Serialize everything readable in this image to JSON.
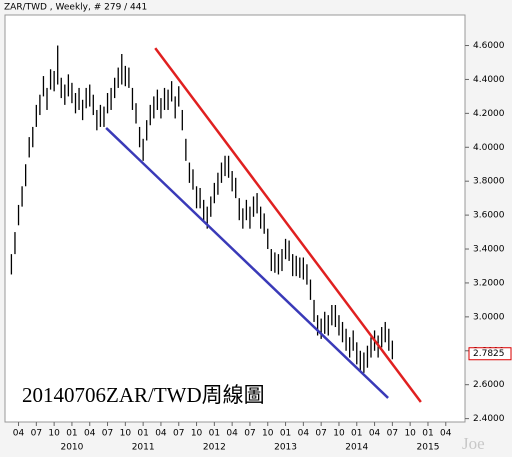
{
  "chart_data": {
    "type": "ohlc",
    "title": "ZAR/TWD , Weekly, # 279 / 441",
    "annotation": "20140706ZAR/TWD周線圖",
    "watermark": "Joe",
    "color": "#000000",
    "x": [
      2009.15,
      2009.2,
      2009.25,
      2009.3,
      2009.35,
      2009.4,
      2009.45,
      2009.5,
      2009.55,
      2009.6,
      2009.65,
      2009.7,
      2009.75,
      2009.8,
      2009.85,
      2009.9,
      2009.95,
      2010.0,
      2010.05,
      2010.1,
      2010.15,
      2010.2,
      2010.25,
      2010.3,
      2010.35,
      2010.4,
      2010.45,
      2010.5,
      2010.55,
      2010.6,
      2010.65,
      2010.7,
      2010.75,
      2010.8,
      2010.85,
      2010.9,
      2010.95,
      2011.0,
      2011.05,
      2011.1,
      2011.15,
      2011.2,
      2011.25,
      2011.3,
      2011.35,
      2011.4,
      2011.45,
      2011.5,
      2011.55,
      2011.6,
      2011.65,
      2011.7,
      2011.75,
      2011.8,
      2011.85,
      2011.9,
      2011.95,
      2012.0,
      2012.05,
      2012.1,
      2012.15,
      2012.2,
      2012.25,
      2012.3,
      2012.35,
      2012.4,
      2012.45,
      2012.5,
      2012.55,
      2012.6,
      2012.65,
      2012.7,
      2012.75,
      2012.8,
      2012.85,
      2012.9,
      2012.95,
      2013.0,
      2013.05,
      2013.1,
      2013.15,
      2013.2,
      2013.25,
      2013.3,
      2013.35,
      2013.4,
      2013.45,
      2013.5,
      2013.55,
      2013.6,
      2013.65,
      2013.7,
      2013.75,
      2013.8,
      2013.85,
      2013.9,
      2013.95,
      2014.0,
      2014.05,
      2014.1,
      2014.15,
      2014.2,
      2014.25,
      2014.3,
      2014.35,
      2014.4,
      2014.45,
      2014.5
    ],
    "high": [
      3.37,
      3.5,
      3.66,
      3.77,
      3.9,
      4.06,
      4.12,
      4.25,
      4.31,
      4.42,
      4.35,
      4.46,
      4.45,
      4.6,
      4.41,
      4.37,
      4.43,
      4.38,
      4.32,
      4.35,
      4.28,
      4.35,
      4.37,
      4.31,
      4.22,
      4.25,
      4.24,
      4.32,
      4.35,
      4.41,
      4.47,
      4.55,
      4.48,
      4.47,
      4.35,
      4.26,
      4.12,
      4.05,
      4.16,
      4.25,
      4.3,
      4.34,
      4.29,
      4.35,
      4.34,
      4.39,
      4.3,
      4.36,
      4.22,
      4.05,
      3.91,
      3.87,
      3.77,
      3.76,
      3.69,
      3.65,
      3.71,
      3.79,
      3.85,
      3.91,
      3.95,
      3.95,
      3.86,
      3.82,
      3.7,
      3.64,
      3.69,
      3.65,
      3.71,
      3.73,
      3.65,
      3.61,
      3.52,
      3.4,
      3.38,
      3.37,
      3.4,
      3.46,
      3.45,
      3.37,
      3.36,
      3.35,
      3.35,
      3.31,
      3.22,
      3.1,
      3.01,
      2.99,
      3.03,
      3.01,
      3.07,
      3.07,
      3.01,
      2.97,
      2.93,
      2.88,
      2.92,
      2.85,
      2.8,
      2.79,
      2.83,
      2.88,
      2.92,
      2.89,
      2.94,
      2.97,
      2.93,
      2.86
    ],
    "low": [
      3.25,
      3.37,
      3.54,
      3.65,
      3.77,
      3.94,
      4.0,
      4.12,
      4.19,
      4.3,
      4.22,
      4.34,
      4.33,
      4.37,
      4.29,
      4.25,
      4.3,
      4.26,
      4.2,
      4.22,
      4.16,
      4.23,
      4.24,
      4.19,
      4.1,
      4.12,
      4.12,
      4.2,
      4.22,
      4.29,
      4.35,
      4.37,
      4.36,
      4.35,
      4.22,
      4.14,
      4.0,
      3.92,
      4.04,
      4.13,
      4.17,
      4.22,
      4.17,
      4.22,
      4.22,
      4.27,
      4.17,
      4.24,
      4.1,
      3.92,
      3.79,
      3.75,
      3.64,
      3.64,
      3.57,
      3.52,
      3.59,
      3.67,
      3.72,
      3.79,
      3.83,
      3.82,
      3.74,
      3.7,
      3.57,
      3.52,
      3.57,
      3.52,
      3.59,
      3.61,
      3.52,
      3.49,
      3.4,
      3.27,
      3.26,
      3.25,
      3.27,
      3.34,
      3.33,
      3.24,
      3.24,
      3.23,
      3.22,
      3.19,
      3.1,
      2.97,
      2.89,
      2.87,
      2.9,
      2.89,
      2.95,
      2.94,
      2.89,
      2.85,
      2.8,
      2.76,
      2.8,
      2.72,
      2.68,
      2.67,
      2.7,
      2.76,
      2.8,
      2.76,
      2.82,
      2.85,
      2.8,
      2.75
    ],
    "last_price": 2.7825,
    "last_color": "#dd0000",
    "trendlines": [
      {
        "color": "#e02020",
        "x": [
          2011.17,
          2014.9
        ],
        "y": [
          4.585,
          2.498
        ]
      },
      {
        "color": "#3a3ab8",
        "x": [
          2010.48,
          2014.44
        ],
        "y": [
          4.114,
          2.522
        ]
      }
    ],
    "xlim": [
      2009.06,
      2015.52
    ],
    "ylim": [
      2.38,
      4.78
    ],
    "yticks": [
      {
        "value": 2.4,
        "label": "2.4000"
      },
      {
        "value": 2.6,
        "label": "2.6000"
      },
      {
        "value": 2.8,
        "label": "2.8000"
      },
      {
        "value": 3.0,
        "label": "3.0000"
      },
      {
        "value": 3.2,
        "label": "3.2000"
      },
      {
        "value": 3.4,
        "label": "3.4000"
      },
      {
        "value": 3.6,
        "label": "3.6000"
      },
      {
        "value": 3.8,
        "label": "3.8000"
      },
      {
        "value": 4.0,
        "label": "4.0000"
      },
      {
        "value": 4.2,
        "label": "4.2000"
      },
      {
        "value": 4.4,
        "label": "4.4000"
      },
      {
        "value": 4.6,
        "label": "4.6000"
      }
    ],
    "xticks": [
      {
        "value": 2009.25,
        "label": "04"
      },
      {
        "value": 2009.5,
        "label": "07"
      },
      {
        "value": 2009.75,
        "label": "10"
      },
      {
        "value": 2010.0,
        "label": "01"
      },
      {
        "value": 2010.25,
        "label": "04"
      },
      {
        "value": 2010.5,
        "label": "07"
      },
      {
        "value": 2010.75,
        "label": "10"
      },
      {
        "value": 2011.0,
        "label": "01"
      },
      {
        "value": 2011.25,
        "label": "04"
      },
      {
        "value": 2011.5,
        "label": "07"
      },
      {
        "value": 2011.75,
        "label": "10"
      },
      {
        "value": 2012.0,
        "label": "01"
      },
      {
        "value": 2012.25,
        "label": "04"
      },
      {
        "value": 2012.5,
        "label": "07"
      },
      {
        "value": 2012.75,
        "label": "10"
      },
      {
        "value": 2013.0,
        "label": "01"
      },
      {
        "value": 2013.25,
        "label": "04"
      },
      {
        "value": 2013.5,
        "label": "07"
      },
      {
        "value": 2013.75,
        "label": "10"
      },
      {
        "value": 2014.0,
        "label": "01"
      },
      {
        "value": 2014.25,
        "label": "04"
      },
      {
        "value": 2014.5,
        "label": "07"
      },
      {
        "value": 2014.75,
        "label": "10"
      },
      {
        "value": 2015.0,
        "label": "01"
      },
      {
        "value": 2015.25,
        "label": "04"
      }
    ],
    "year_ticks": [
      2010,
      2011,
      2012,
      2013,
      2014,
      2015
    ]
  }
}
